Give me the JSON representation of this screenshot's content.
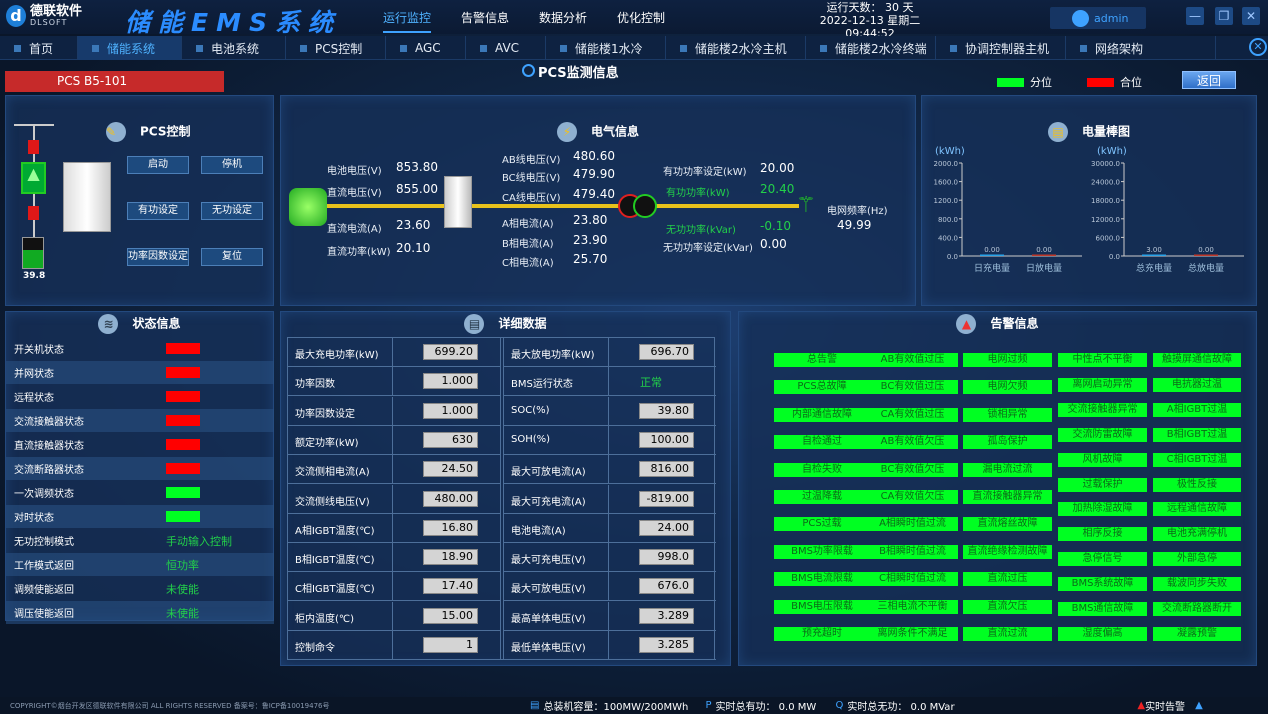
{
  "header": {
    "logo_cn": "德联软件",
    "logo_en": "DLSOFT",
    "title": "储能EMS系统",
    "nav": [
      {
        "label": "运行监控",
        "active": true
      },
      {
        "label": "告警信息"
      },
      {
        "label": "数据分析"
      },
      {
        "label": "优化控制"
      }
    ],
    "run_days": "运行天数： 30 天",
    "datetime": "2022-12-13 星期二 09:44:52",
    "user": "admin"
  },
  "tabs": [
    {
      "label": "首页"
    },
    {
      "label": "储能系统",
      "active": true
    },
    {
      "label": "电池系统"
    },
    {
      "label": "PCS控制"
    },
    {
      "label": "AGC"
    },
    {
      "label": "AVC"
    },
    {
      "label": "储能楼1水冷"
    },
    {
      "label": "储能楼2水冷主机"
    },
    {
      "label": "储能楼2水冷终端"
    },
    {
      "label": "协调控制器主机"
    },
    {
      "label": "网络架构"
    }
  ],
  "subheader": {
    "device": "PCS B5-101",
    "title": "PCS监测信息",
    "legend_open": "分位",
    "legend_closed": "合位",
    "back": "返回",
    "colors": {
      "open": "#00ff22",
      "closed": "#ff0000"
    }
  },
  "pcs_control": {
    "title": "PCS控制",
    "soc": "39.8",
    "buttons": [
      "启动",
      "停机",
      "有功设定",
      "无功设定",
      "功率因数设定",
      "复位"
    ]
  },
  "electrical": {
    "title": "电气信息",
    "dc": [
      {
        "label": "电池电压(V)",
        "value": "853.80"
      },
      {
        "label": "直流电压(V)",
        "value": "855.00"
      },
      {
        "label": "直流电流(A)",
        "value": "23.60"
      },
      {
        "label": "直流功率(kW)",
        "value": "20.10"
      }
    ],
    "ac": [
      {
        "label": "AB线电压(V)",
        "value": "480.60"
      },
      {
        "label": "BC线电压(V)",
        "value": "479.90"
      },
      {
        "label": "CA线电压(V)",
        "value": "479.40"
      },
      {
        "label": "A相电流(A)",
        "value": "23.80"
      },
      {
        "label": "B相电流(A)",
        "value": "23.90"
      },
      {
        "label": "C相电流(A)",
        "value": "25.70"
      }
    ],
    "power": [
      {
        "label": "有功功率设定(kW)",
        "value": "20.00"
      },
      {
        "label": "有功功率(kW)",
        "value": "20.40",
        "green": true
      },
      {
        "label": "无功功率(kVar)",
        "value": "-0.10",
        "green": true
      },
      {
        "label": "无功功率设定(kVar)",
        "value": "0.00"
      }
    ],
    "grid_freq_label": "电网频率(Hz)",
    "grid_freq": "49.99"
  },
  "chart_data": [
    {
      "type": "bar",
      "title": "电量棒图",
      "ylabel": "(kWh)",
      "categories": [
        "日充电量",
        "日放电量"
      ],
      "values": [
        0.0,
        0.0
      ],
      "labels": [
        "0.00",
        "0.00"
      ],
      "ylim": [
        0,
        2000
      ],
      "yticks": [
        "0.0",
        "400.0",
        "800.0",
        "1200.0",
        "1600.0",
        "2000.0"
      ],
      "colors": [
        "#2aa4e8",
        "#c0392b"
      ]
    },
    {
      "type": "bar",
      "ylabel": "(kWh)",
      "categories": [
        "总充电量",
        "总放电量"
      ],
      "values": [
        3.0,
        0.0
      ],
      "labels": [
        "3.00",
        "0.00"
      ],
      "ylim": [
        0,
        30000
      ],
      "yticks": [
        "0.0",
        "6000.0",
        "12000.0",
        "18000.0",
        "24000.0",
        "30000.0"
      ],
      "colors": [
        "#2aa4e8",
        "#c0392b"
      ]
    }
  ],
  "status": {
    "title": "状态信息",
    "rows": [
      {
        "label": "开关机状态",
        "state": "red"
      },
      {
        "label": "并网状态",
        "state": "red"
      },
      {
        "label": "远程状态",
        "state": "red"
      },
      {
        "label": "交流接触器状态",
        "state": "red"
      },
      {
        "label": "直流接触器状态",
        "state": "red"
      },
      {
        "label": "交流断路器状态",
        "state": "red"
      },
      {
        "label": "一次调频状态",
        "state": "green"
      },
      {
        "label": "对时状态",
        "state": "green"
      },
      {
        "label": "无功控制模式",
        "text": "手动输入控制"
      },
      {
        "label": "工作模式返回",
        "text": "恒功率"
      },
      {
        "label": "调频使能返回",
        "text": "未使能"
      },
      {
        "label": "调压使能返回",
        "text": "未使能"
      }
    ]
  },
  "detail": {
    "title": "详细数据",
    "left": [
      {
        "label": "最大充电功率(kW)",
        "value": "699.20"
      },
      {
        "label": "功率因数",
        "value": "1.000"
      },
      {
        "label": "功率因数设定",
        "value": "1.000"
      },
      {
        "label": "额定功率(kW)",
        "value": "630"
      },
      {
        "label": "交流侧相电流(A)",
        "value": "24.50"
      },
      {
        "label": "交流侧线电压(V)",
        "value": "480.00"
      },
      {
        "label": "A相IGBT温度(℃)",
        "value": "16.80"
      },
      {
        "label": "B相IGBT温度(℃)",
        "value": "18.90"
      },
      {
        "label": "C相IGBT温度(℃)",
        "value": "17.40"
      },
      {
        "label": "柜内温度(℃)",
        "value": "15.00"
      },
      {
        "label": "控制命令",
        "value": "1"
      }
    ],
    "right": [
      {
        "label": "最大放电功率(kW)",
        "value": "696.70"
      },
      {
        "label": "BMS运行状态",
        "text": "正常"
      },
      {
        "label": "SOC(%)",
        "value": "39.80"
      },
      {
        "label": "SOH(%)",
        "value": "100.00"
      },
      {
        "label": "最大可放电流(A)",
        "value": "816.00"
      },
      {
        "label": "最大可充电流(A)",
        "value": "-819.00"
      },
      {
        "label": "电池电流(A)",
        "value": "24.00"
      },
      {
        "label": "最大可充电压(V)",
        "value": "998.0"
      },
      {
        "label": "最大可放电压(V)",
        "value": "676.0"
      },
      {
        "label": "最高单体电压(V)",
        "value": "3.289"
      },
      {
        "label": "最低单体电压(V)",
        "value": "3.285"
      }
    ]
  },
  "alarms": {
    "title": "告警信息",
    "col1": [
      "总告警",
      "PCS总故障",
      "内部通信故障",
      "自检通过",
      "自检失败",
      "过温降载",
      "PCS过载",
      "BMS功率限载",
      "BMS电流限载",
      "BMS电压限载",
      "预充超时"
    ],
    "col2": [
      "AB有效值过压",
      "BC有效值过压",
      "CA有效值过压",
      "AB有效值欠压",
      "BC有效值欠压",
      "CA有效值欠压",
      "A相瞬时值过流",
      "B相瞬时值过流",
      "C相瞬时值过流",
      "三相电流不平衡",
      "离网条件不满足"
    ],
    "col3": [
      "电网过频",
      "电网欠频",
      "锁相异常",
      "孤岛保护",
      "漏电流过流",
      "直流接触器异常",
      "直流熔丝故障",
      "直流绝缘检测故障",
      "直流过压",
      "直流欠压",
      "直流过流"
    ],
    "col4": [
      "中性点不平衡",
      "离网启动异常",
      "交流接触器异常",
      "交流防雷故障",
      "风机故障",
      "过载保护",
      "加热除湿故障",
      "相序反接",
      "急停信号",
      "BMS系统故障",
      "BMS通信故障",
      "湿度偏高"
    ],
    "col5": [
      "触摸屏通信故障",
      "电抗器过温",
      "A相IGBT过温",
      "B相IGBT过温",
      "C相IGBT过温",
      "极性反接",
      "远程通信故障",
      "电池充满停机",
      "外部急停",
      "载波同步失败",
      "交流断路器断开",
      "凝露预警"
    ]
  },
  "footer": {
    "copyright": "COPYRIGHT©烟台开发区德联软件有限公司 ALL RIGHTS RESERVED 备案号：鲁ICP备10019476号",
    "capacity": "总装机容量：100MW/200MWh",
    "active_power": "实时总有功： 0.0 MW",
    "reactive_power": "实时总无功： 0.0 MVar",
    "alarm": "实时告警"
  }
}
